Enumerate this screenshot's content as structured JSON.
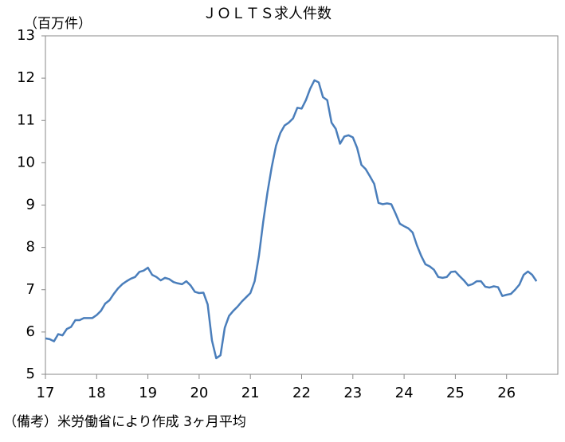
{
  "chart_data": {
    "type": "line",
    "title": "ＪＯＬＴＳ求人件数",
    "y_label": "（百万件）",
    "note": "（備考）米労働省により作成 3ヶ月平均",
    "categories": [
      "17",
      null,
      null,
      null,
      null,
      null,
      null,
      null,
      null,
      null,
      null,
      null,
      "18",
      null,
      null,
      null,
      null,
      null,
      null,
      null,
      null,
      null,
      null,
      null,
      "19",
      null,
      null,
      null,
      null,
      null,
      null,
      null,
      null,
      null,
      null,
      null,
      "20",
      null,
      null,
      null,
      null,
      null,
      null,
      null,
      null,
      null,
      null,
      null,
      "21",
      null,
      null,
      null,
      null,
      null,
      null,
      null,
      null,
      null,
      null,
      null,
      "22",
      null,
      null,
      null,
      null,
      null,
      null,
      null,
      null,
      null,
      null,
      null,
      "23",
      null,
      null,
      null,
      null,
      null,
      null,
      null,
      null,
      null,
      null,
      null,
      "24",
      null,
      null,
      null,
      null,
      null,
      null,
      null,
      null,
      null,
      null,
      null,
      "25",
      null,
      null,
      null,
      null,
      null,
      null,
      null,
      null,
      null,
      null,
      null,
      "26",
      null,
      null,
      null,
      null,
      null,
      null,
      null
    ],
    "series": [
      {
        "color": "#4a7ebb",
        "values": [
          5.85,
          5.83,
          5.78,
          5.95,
          5.92,
          6.07,
          6.12,
          6.28,
          6.28,
          6.33,
          6.33,
          6.33,
          6.4,
          6.5,
          6.67,
          6.75,
          6.9,
          7.03,
          7.13,
          7.2,
          7.26,
          7.3,
          7.42,
          7.45,
          7.52,
          7.35,
          7.3,
          7.22,
          7.28,
          7.25,
          7.18,
          7.15,
          7.13,
          7.2,
          7.1,
          6.95,
          6.92,
          6.93,
          6.65,
          5.8,
          5.38,
          5.45,
          6.1,
          6.38,
          6.5,
          6.6,
          6.72,
          6.82,
          6.92,
          7.2,
          7.8,
          8.6,
          9.3,
          9.9,
          10.4,
          10.7,
          10.88,
          10.95,
          11.05,
          11.3,
          11.28,
          11.48,
          11.75,
          11.95,
          11.9,
          11.55,
          11.48,
          10.95,
          10.8,
          10.45,
          10.62,
          10.65,
          10.6,
          10.35,
          9.95,
          9.85,
          9.68,
          9.5,
          9.05,
          9.02,
          9.04,
          9.02,
          8.8,
          8.56,
          8.5,
          8.45,
          8.35,
          8.05,
          7.8,
          7.6,
          7.55,
          7.47,
          7.3,
          7.28,
          7.3,
          7.42,
          7.43,
          7.32,
          7.22,
          7.1,
          7.13,
          7.2,
          7.2,
          7.07,
          7.05,
          7.08,
          7.06,
          6.85,
          6.88,
          6.9,
          7.0,
          7.12,
          7.35,
          7.43,
          7.35,
          7.2
        ]
      }
    ],
    "ylim": [
      5,
      13
    ],
    "yticks": [
      5,
      6,
      7,
      8,
      9,
      10,
      11,
      12,
      13
    ],
    "grid": false
  }
}
